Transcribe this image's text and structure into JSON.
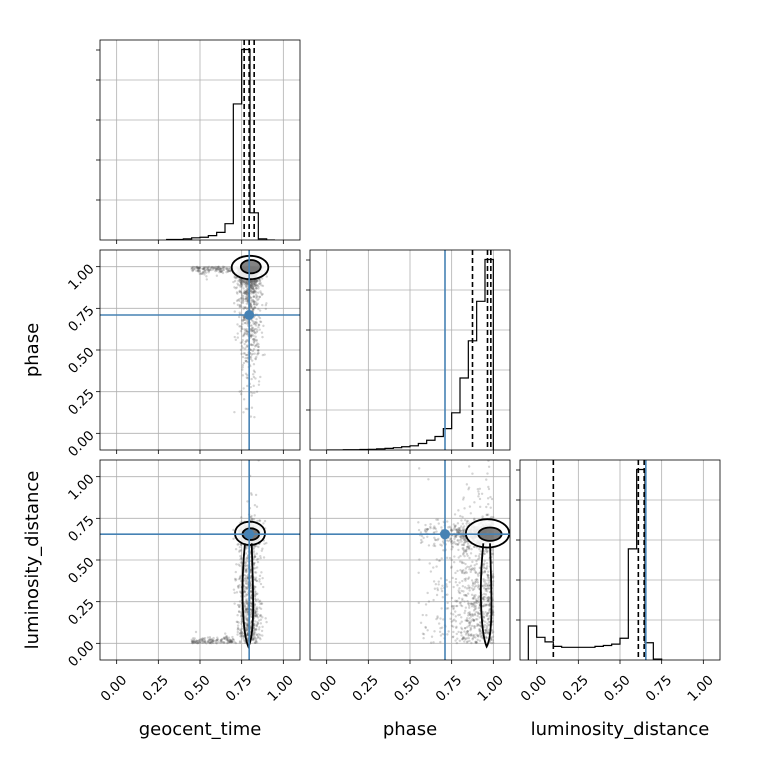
{
  "chart_data": {
    "type": "corner",
    "parameters": [
      "geocent_time",
      "phase",
      "luminosity_distance"
    ],
    "tick_labels": [
      "0.00",
      "0.25",
      "0.50",
      "0.75",
      "1.00"
    ],
    "ticks": [
      0,
      0.25,
      0.5,
      0.75,
      1.0
    ],
    "range": [
      -0.1,
      1.1
    ],
    "grid": true,
    "injection_color": "#4682b4",
    "injection": {
      "geocent_time": 0.795,
      "phase": 0.71,
      "luminosity_distance": 0.655
    },
    "quantiles": {
      "geocent_time": [
        0.765,
        0.795,
        0.825
      ],
      "phase": [
        0.875,
        0.965,
        0.985
      ],
      "luminosity_distance": [
        0.1,
        0.61,
        0.645
      ]
    },
    "histograms": {
      "geocent_time": {
        "edges": [
          0.3,
          0.35,
          0.4,
          0.45,
          0.5,
          0.55,
          0.6,
          0.65,
          0.7,
          0.75,
          0.8,
          0.85,
          0.9,
          0.95
        ],
        "values": [
          0.01,
          0.01,
          0.02,
          0.04,
          0.05,
          0.08,
          0.14,
          0.3,
          2.5,
          3.5,
          0.5,
          0.02,
          0.0
        ]
      },
      "phase": {
        "edges": [
          0.0,
          0.05,
          0.1,
          0.15,
          0.2,
          0.25,
          0.3,
          0.35,
          0.4,
          0.45,
          0.5,
          0.55,
          0.6,
          0.65,
          0.7,
          0.75,
          0.8,
          0.85,
          0.9,
          0.95,
          1.0
        ],
        "values": [
          0.0,
          0.0,
          0.01,
          0.01,
          0.02,
          0.03,
          0.05,
          0.07,
          0.1,
          0.14,
          0.18,
          0.28,
          0.42,
          0.58,
          0.92,
          1.6,
          3.1,
          4.7,
          6.4,
          8.2
        ]
      },
      "luminosity_distance": {
        "edges": [
          -0.05,
          0.0,
          0.05,
          0.1,
          0.15,
          0.2,
          0.25,
          0.3,
          0.35,
          0.4,
          0.45,
          0.5,
          0.55,
          0.6,
          0.65,
          0.7,
          0.75
        ],
        "values": [
          0.75,
          0.5,
          0.4,
          0.3,
          0.28,
          0.28,
          0.28,
          0.28,
          0.3,
          0.32,
          0.35,
          0.48,
          2.45,
          4.2,
          0.38,
          0.02
        ]
      }
    },
    "contours": {
      "phase_vs_geocent_time": [
        {
          "cx": 0.8,
          "cy": 0.995,
          "rx": 0.11,
          "ry": 0.07,
          "level": "outer"
        },
        {
          "cx": 0.805,
          "cy": 1.0,
          "rx": 0.06,
          "ry": 0.04,
          "level": "inner"
        }
      ],
      "luminosity_distance_vs_geocent_time": [
        {
          "cx": 0.8,
          "cy": 0.66,
          "rx": 0.09,
          "ry": 0.07,
          "level": "outer"
        },
        {
          "cx": 0.805,
          "cy": 0.655,
          "rx": 0.05,
          "ry": 0.035,
          "level": "inner"
        }
      ],
      "luminosity_distance_vs_phase": [
        {
          "cx": 0.965,
          "cy": 0.66,
          "rx": 0.13,
          "ry": 0.085,
          "level": "outer"
        },
        {
          "cx": 0.98,
          "cy": 0.655,
          "rx": 0.07,
          "ry": 0.04,
          "level": "inner"
        }
      ]
    }
  }
}
